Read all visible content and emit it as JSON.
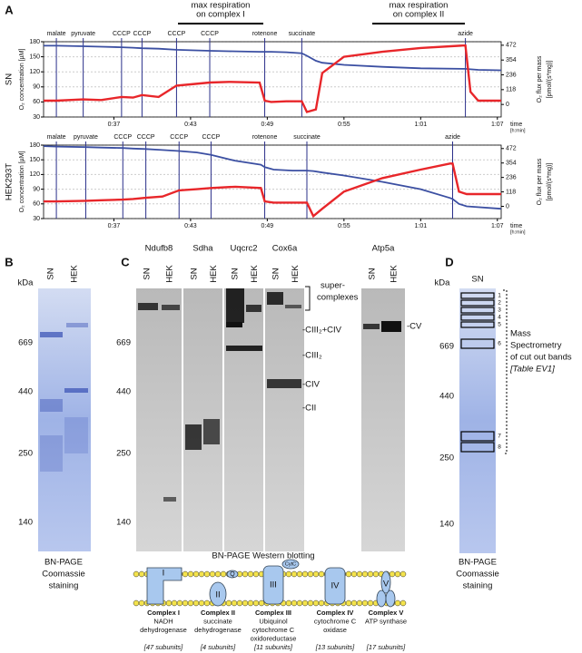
{
  "panel_a": {
    "label": "A",
    "brackets": [
      [
        "max respiration",
        "on complex I"
      ],
      [
        "max respiration",
        "on complex II"
      ]
    ]
  },
  "chart_data": [
    {
      "type": "line",
      "row_label": "SN",
      "ylabel": "O₂ concentration [µM]",
      "y2label": [
        "O₂ flux per mass",
        "[pmol/(s*mg)]"
      ],
      "xlabel": [
        "time",
        "[h:min]"
      ],
      "grid": true,
      "xlim": [
        31.5,
        67.3
      ],
      "ylim": [
        30,
        180
      ],
      "y2lim": [
        -100,
        500
      ],
      "xticks": [
        {
          "value": 37,
          "label": "0:37"
        },
        {
          "value": 43,
          "label": "0:43"
        },
        {
          "value": 49,
          "label": "0:49"
        },
        {
          "value": 55,
          "label": "0:55"
        },
        {
          "value": 61,
          "label": "1:01"
        },
        {
          "value": 67,
          "label": "1:07"
        }
      ],
      "yticks": [
        30,
        60,
        90,
        120,
        150,
        180
      ],
      "y2ticks": [
        0,
        118,
        236,
        354,
        472
      ],
      "events": [
        {
          "label": "malate",
          "x": 32.5
        },
        {
          "label": "pyruvate",
          "x": 34.6
        },
        {
          "label": "CCCP",
          "x": 37.6
        },
        {
          "label": "CCCP",
          "x": 39.2
        },
        {
          "label": "CCCP",
          "x": 41.9
        },
        {
          "label": "CCCP",
          "x": 44.5
        },
        {
          "label": "rotenone",
          "x": 48.8
        },
        {
          "label": "succinate",
          "x": 51.7
        },
        {
          "label": "azide",
          "x": 64.5
        }
      ],
      "x": [
        31.5,
        32.5,
        34.6,
        36,
        37.6,
        38.5,
        39.2,
        40.5,
        41.9,
        43,
        44.5,
        46,
        48.4,
        48.8,
        49.3,
        50.5,
        51.7,
        52.1,
        52.8,
        53.3,
        55,
        58,
        61,
        64.3,
        64.5,
        64.9,
        65.5,
        67.3
      ],
      "series": [
        {
          "color": "#3b4fa2",
          "axis": "y",
          "values": [
            172,
            172,
            171,
            170,
            169,
            168,
            167,
            166,
            164,
            163,
            162,
            161,
            160,
            160,
            160,
            159,
            157,
            152,
            142,
            138,
            134,
            130,
            127,
            126,
            126,
            125,
            124,
            123
          ]
        },
        {
          "color": "#e8262a",
          "axis": "y2",
          "values": [
            30,
            30,
            40,
            35,
            60,
            55,
            75,
            60,
            150,
            160,
            175,
            180,
            175,
            30,
            20,
            25,
            25,
            -60,
            -40,
            250,
            380,
            420,
            450,
            470,
            470,
            100,
            30,
            30
          ]
        }
      ]
    },
    {
      "type": "line",
      "row_label": "HEK293T",
      "ylabel": "O₂ concentration [µM]",
      "y2label": [
        "O₂ flux per mass",
        "[pmol/(s*mg)]"
      ],
      "xlabel": [
        "time",
        "[h:min]"
      ],
      "grid": true,
      "xlim": [
        31.5,
        67.3
      ],
      "ylim": [
        30,
        180
      ],
      "y2lim": [
        -100,
        500
      ],
      "xticks": [
        {
          "value": 37,
          "label": "0:37"
        },
        {
          "value": 43,
          "label": "0:43"
        },
        {
          "value": 49,
          "label": "0:49"
        },
        {
          "value": 55,
          "label": "0:55"
        },
        {
          "value": 61,
          "label": "1:01"
        },
        {
          "value": 67,
          "label": "1:07"
        }
      ],
      "yticks": [
        30,
        60,
        90,
        120,
        150,
        180
      ],
      "y2ticks": [
        0,
        118,
        236,
        354,
        472
      ],
      "events": [
        {
          "label": "malate",
          "x": 32.5
        },
        {
          "label": "pyruvate",
          "x": 34.8
        },
        {
          "label": "CCCP",
          "x": 37.7
        },
        {
          "label": "CCCP",
          "x": 39.5
        },
        {
          "label": "CCCP",
          "x": 42.1
        },
        {
          "label": "CCCP",
          "x": 44.6
        },
        {
          "label": "rotenone",
          "x": 48.8
        },
        {
          "label": "succinate",
          "x": 52.1
        },
        {
          "label": "azide",
          "x": 63.5
        }
      ],
      "x": [
        31.5,
        32.5,
        34.8,
        36,
        37.7,
        38.5,
        39.5,
        40.8,
        42.1,
        43.5,
        44.6,
        46.5,
        48.5,
        48.8,
        49.5,
        51,
        52.1,
        52.6,
        53.3,
        55,
        58,
        61,
        63.3,
        63.5,
        64,
        64.6,
        67.3
      ],
      "series": [
        {
          "color": "#3b4fa2",
          "axis": "y",
          "values": [
            178,
            177,
            176,
            175,
            174,
            173,
            172,
            170,
            168,
            165,
            160,
            148,
            140,
            135,
            130,
            128,
            128,
            127,
            124,
            118,
            105,
            90,
            72,
            70,
            60,
            55,
            50
          ]
        },
        {
          "color": "#e8262a",
          "axis": "y2",
          "values": [
            40,
            40,
            45,
            50,
            55,
            60,
            70,
            80,
            130,
            140,
            150,
            160,
            150,
            40,
            30,
            30,
            30,
            -80,
            -20,
            120,
            230,
            300,
            350,
            350,
            120,
            100,
            100
          ]
        }
      ]
    }
  ],
  "panel_b": {
    "label": "B",
    "unit": "kDa",
    "lanes": [
      "SN",
      "HEK"
    ],
    "markers": [
      "669",
      "440",
      "250",
      "140"
    ],
    "caption": [
      "BN-PAGE",
      "Coomassie",
      "staining"
    ]
  },
  "panel_c": {
    "label": "C",
    "markers": [
      "669",
      "440",
      "250",
      "140"
    ],
    "antibodies": [
      {
        "name": "Ndufb8",
        "lanes": [
          "SN",
          "HEK"
        ]
      },
      {
        "name": "Sdha",
        "lanes": [
          "SN",
          "HEK"
        ]
      },
      {
        "name": "Uqcrc2",
        "lanes": [
          "SN",
          "HEK"
        ]
      },
      {
        "name": "Cox6a",
        "lanes": [
          "SN",
          "HEK"
        ]
      },
      {
        "name": "Atp5a",
        "lanes": [
          "SN",
          "HEK"
        ]
      }
    ],
    "band_labels": [
      "super-",
      "complexes",
      "-CIII₂+CIV",
      "-CIII₂",
      "-CIV",
      "-CII",
      "-CV"
    ],
    "caption": "BN-PAGE Western blotting",
    "symbols": [
      "Q",
      "CytC"
    ],
    "complexes": [
      {
        "symbol": "I",
        "lines": [
          "Complex I",
          "NADH",
          "dehydrogenase"
        ],
        "subunits": "[47 subunits]"
      },
      {
        "symbol": "II",
        "lines": [
          "Complex II",
          "succinate",
          "dehydrogenase"
        ],
        "subunits": "[4 subunits]"
      },
      {
        "symbol": "III",
        "lines": [
          "Complex III",
          "Ubiquinol",
          "cytochrome C",
          "oxidoreductase"
        ],
        "subunits": "[11 subunits]"
      },
      {
        "symbol": "IV",
        "lines": [
          "Complex IV",
          "cytochrome C",
          "oxidase"
        ],
        "subunits": "[13 subunits]"
      },
      {
        "symbol": "V",
        "lines": [
          "Complex V",
          "ATP synthase"
        ],
        "subunits": "[17 subunits]"
      }
    ]
  },
  "panel_d": {
    "label": "D",
    "unit": "kDa",
    "lane": "SN",
    "markers": [
      "669",
      "440",
      "250",
      "140"
    ],
    "bands": [
      "1",
      "2",
      "3",
      "4",
      "5",
      "6",
      "7",
      "8"
    ],
    "note": [
      "Mass",
      "Spectrometry",
      "of cut out bands",
      "[Table EV1]"
    ],
    "caption": [
      "BN-PAGE",
      "Coomassie",
      "staining"
    ]
  }
}
